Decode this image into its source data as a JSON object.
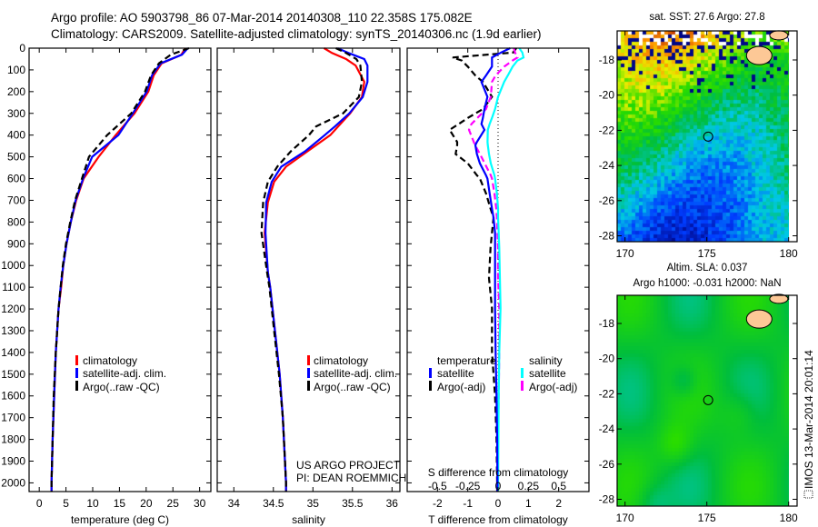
{
  "header": {
    "line1": "Argo profile: AO 5903798_86 07-Mar-2014 20140308_110 22.358S 175.082E",
    "line2": "Climatology: CARS2009. Satellite-adjusted climatology: synTS_20140306.nc (1.9d earlier)"
  },
  "credits": {
    "project": "US ARGO PROJECT",
    "pi": "PI: DEAN ROEMMICH",
    "side_stamp": "IMOS 13-Mar-2014 20:01:14"
  },
  "colors": {
    "climatology": "#ff0000",
    "satellite": "#0000ff",
    "argo": "#000000",
    "sal_satellite": "#00ffff",
    "sal_argo": "#ff00ff"
  },
  "legend_profiles": [
    "climatology",
    "satellite-adj. clim.",
    "Argo(..raw -QC)"
  ],
  "legend_diff": {
    "temp_header": "temperature",
    "sal_header": "salinity",
    "temp_items": [
      "satellite",
      "Argo(-adj)"
    ],
    "sal_items": [
      "satellite",
      "Argo(-adj)"
    ]
  },
  "chart_data": [
    {
      "type": "line",
      "name": "temperature-profile",
      "xlabel": "temperature (deg C)",
      "ylabel": "depth",
      "xlim": [
        -1.9,
        32.1
      ],
      "ylim": [
        2040,
        0
      ],
      "xticks": [
        0,
        5,
        10,
        15,
        20,
        25,
        30
      ],
      "yticks": [
        0,
        100,
        200,
        300,
        400,
        500,
        600,
        700,
        800,
        900,
        1000,
        1100,
        1200,
        1300,
        1400,
        1500,
        1600,
        1700,
        1800,
        1900,
        2000
      ],
      "depth": [
        0,
        30,
        70,
        125,
        200,
        300,
        400,
        500,
        600,
        700,
        800,
        900,
        1000,
        1100,
        1200,
        1400,
        1600,
        1800,
        2000,
        2040
      ],
      "series": [
        {
          "name": "climatology",
          "values": [
            27.3,
            26.6,
            22.9,
            21.4,
            20.4,
            17.8,
            14.3,
            11.1,
            8.3,
            6.9,
            5.9,
            5.1,
            4.5,
            4.1,
            3.6,
            3.1,
            2.8,
            2.5,
            2.3,
            2.3
          ]
        },
        {
          "name": "satellite-adj. clim.",
          "values": [
            27.8,
            26.7,
            22.7,
            21.1,
            20.1,
            17.5,
            14.8,
            9.9,
            8.2,
            6.8,
            5.9,
            5.1,
            4.5,
            4.0,
            3.6,
            3.1,
            2.8,
            2.5,
            2.3,
            2.3
          ]
        },
        {
          "name": "Argo(..raw -QC)",
          "values": [
            28.0,
            24.6,
            22.4,
            20.9,
            19.8,
            17.2,
            12.7,
            9.3,
            8.0,
            6.7,
            5.8,
            5.0,
            4.4,
            4.0,
            3.6,
            3.1,
            2.7,
            2.5,
            2.3,
            2.3
          ]
        }
      ]
    },
    {
      "type": "line",
      "name": "salinity-profile",
      "xlabel": "salinity",
      "ylabel": "depth",
      "xlim": [
        33.79,
        36.1
      ],
      "ylim": [
        2040,
        0
      ],
      "xticks": [
        34,
        34.5,
        35,
        35.5,
        36
      ],
      "depth": [
        0,
        22,
        50,
        80,
        155,
        225,
        300,
        360,
        400,
        475,
        545,
        615,
        710,
        850,
        1030,
        1100,
        1300,
        1500,
        1700,
        2000,
        2040
      ],
      "series": [
        {
          "name": "climatology",
          "values": [
            35.14,
            35.24,
            35.42,
            35.54,
            35.65,
            35.62,
            35.47,
            35.32,
            35.22,
            34.93,
            34.66,
            34.51,
            34.43,
            34.39,
            34.43,
            34.46,
            34.52,
            34.58,
            34.62,
            34.66,
            34.66
          ]
        },
        {
          "name": "satellite-adj. clim.",
          "values": [
            35.31,
            35.45,
            35.65,
            35.69,
            35.69,
            35.63,
            35.46,
            35.28,
            35.15,
            34.9,
            34.6,
            34.48,
            34.41,
            34.4,
            34.43,
            34.46,
            34.52,
            34.58,
            34.62,
            34.66,
            34.66
          ]
        },
        {
          "name": "Argo(..raw -QC)",
          "values": [
            35.29,
            35.42,
            35.55,
            35.6,
            35.62,
            35.58,
            35.38,
            35.04,
            34.95,
            34.72,
            34.55,
            34.43,
            34.37,
            34.35,
            34.42,
            34.45,
            34.51,
            34.57,
            34.62,
            34.66,
            34.66
          ]
        }
      ]
    },
    {
      "type": "line",
      "name": "difference-from-climatology",
      "xlabel": "T difference from climatology",
      "x2label": "S difference from climatology",
      "xlim": [
        -3,
        3
      ],
      "x2lim": [
        -0.75,
        0.75
      ],
      "ylim": [
        2040,
        0
      ],
      "xticks": [
        -2,
        -1,
        0,
        1,
        2
      ],
      "x2ticks": [
        -0.5,
        -0.25,
        0,
        0.25,
        0.5
      ],
      "x2ticklabels": [
        "-0.5",
        "-0.25",
        "0",
        "0.25",
        "0.5"
      ],
      "depth": [
        0,
        20,
        43,
        57,
        85,
        126,
        155,
        224,
        280,
        321,
        349,
        376,
        432,
        446,
        487,
        530,
        585,
        600,
        668,
        738,
        780,
        850,
        918,
        1057,
        1197,
        1400,
        1600,
        1800,
        2000,
        2040
      ],
      "series": [
        {
          "name": "temperature satellite",
          "axis": "T",
          "values": [
            0.4,
            0.1,
            -0.2,
            -0.2,
            -0.2,
            -0.4,
            -0.55,
            -0.35,
            -0.45,
            -0.5,
            -0.55,
            -0.45,
            -0.7,
            -0.75,
            -0.7,
            -0.6,
            -0.4,
            -0.35,
            -0.28,
            -0.2,
            -0.15,
            -0.1,
            -0.1,
            -0.1,
            -0.1,
            -0.08,
            -0.05,
            -0.03,
            -0.02,
            -0.02
          ]
        },
        {
          "name": "temperature Argo(-adj)",
          "axis": "T",
          "values": [
            0.6,
            0.5,
            -1.5,
            -1.2,
            -1.0,
            -0.75,
            -0.5,
            -0.2,
            -0.5,
            -1.0,
            -1.3,
            -1.6,
            -1.35,
            -1.35,
            -1.4,
            -1.0,
            -0.7,
            -0.6,
            -0.4,
            -0.25,
            -0.15,
            -0.2,
            -0.25,
            -0.3,
            -0.2,
            -0.2,
            -0.1,
            -0.05,
            -0.03,
            -0.03
          ]
        },
        {
          "name": "salinity satellite",
          "axis": "S",
          "values": [
            0.175,
            0.2,
            0.21,
            0.16,
            0.12,
            0.08,
            0.05,
            0.0,
            -0.025,
            -0.05,
            -0.07,
            -0.085,
            -0.087,
            -0.085,
            -0.075,
            -0.06,
            -0.03,
            -0.025,
            -0.01,
            0.0,
            0.0,
            0.005,
            0.01,
            0.015,
            0.02,
            0.01,
            0.005,
            0.003,
            0.0,
            0.0
          ]
        },
        {
          "name": "salinity Argo(-adj)",
          "axis": "S",
          "values": [
            0.13,
            0.14,
            0.16,
            0.12,
            0.05,
            -0.02,
            -0.05,
            -0.06,
            -0.1,
            -0.17,
            -0.22,
            -0.24,
            -0.2,
            -0.19,
            -0.15,
            -0.11,
            -0.06,
            -0.05,
            -0.03,
            -0.015,
            -0.01,
            -0.005,
            0.0,
            0.0,
            0.01,
            0.01,
            0.005,
            0.0,
            0.0,
            0.0
          ]
        }
      ]
    },
    {
      "type": "heatmap",
      "name": "sst-map",
      "title": "sat. SST: 27.6 Argo: 27.8",
      "xlim": [
        169.5,
        180.05
      ],
      "ylim": [
        -28.37,
        -16.36
      ],
      "xticks": [
        170,
        175,
        180
      ],
      "yticks": [
        -18,
        -20,
        -22,
        -24,
        -26,
        -28
      ],
      "marker": {
        "lon": 175.082,
        "lat": -22.358
      }
    },
    {
      "type": "heatmap",
      "name": "sla-map",
      "title": "Altim. SLA: 0.037",
      "subtitle": "Argo h1000: -0.031 h2000: NaN",
      "xlim": [
        169.5,
        180.05
      ],
      "ylim": [
        -28.37,
        -16.36
      ],
      "xticks": [
        170,
        175,
        180
      ],
      "yticks": [
        -18,
        -20,
        -22,
        -24,
        -26,
        -28
      ],
      "marker": {
        "lon": 175.082,
        "lat": -22.358
      }
    }
  ]
}
